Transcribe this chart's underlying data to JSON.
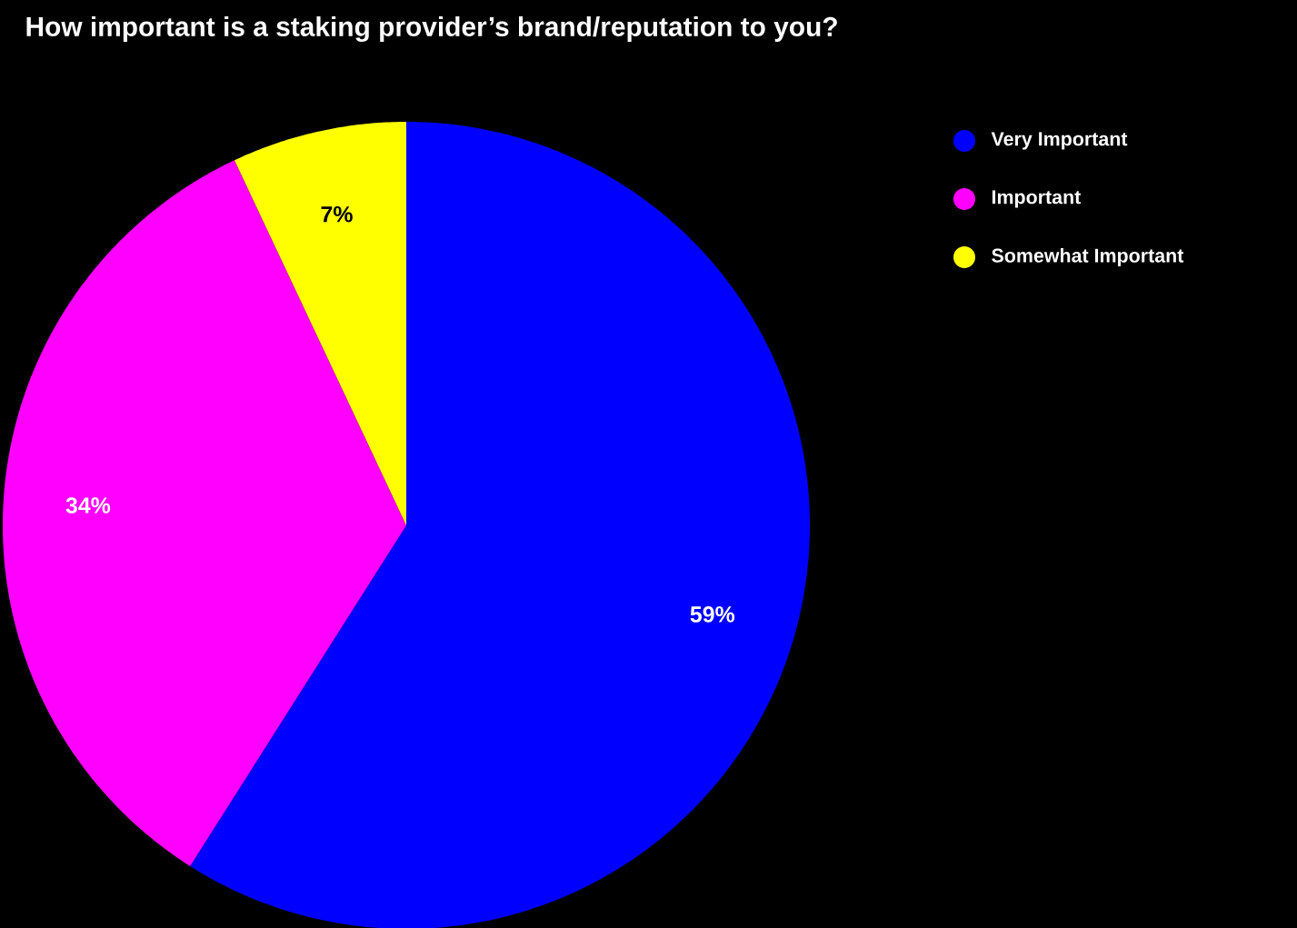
{
  "chart_data": {
    "type": "pie",
    "title": "How important is a staking provider’s brand/reputation to you?",
    "categories": [
      "Very Important",
      "Important",
      "Somewhat Important"
    ],
    "values": [
      59,
      34,
      7
    ],
    "colors": [
      "#0000ff",
      "#ff00ff",
      "#ffff00"
    ],
    "value_labels": [
      "59%",
      "34%",
      "7%"
    ],
    "legend": "top right"
  }
}
